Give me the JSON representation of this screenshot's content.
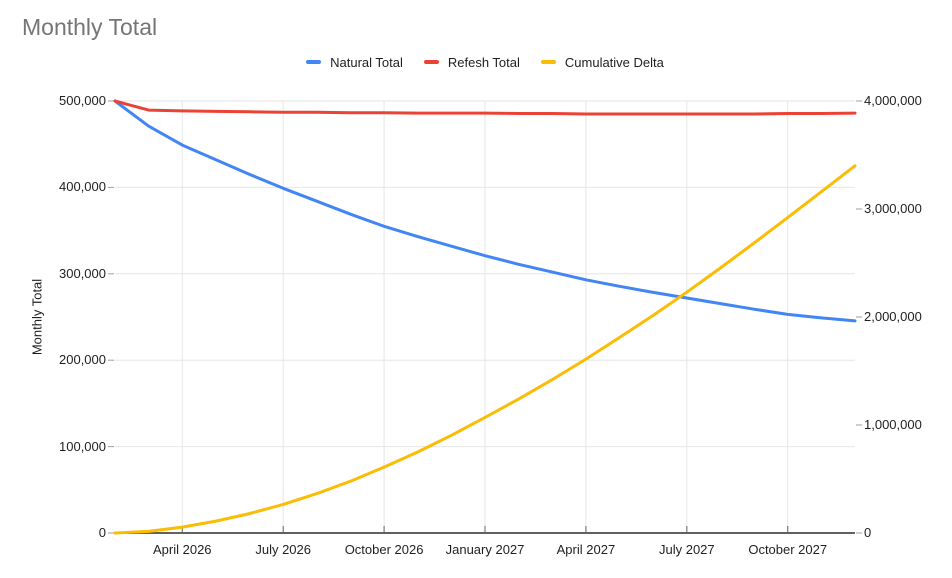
{
  "title": "Monthly Total",
  "legend": {
    "items": [
      {
        "label": "Natural Total",
        "color": "#4285F4"
      },
      {
        "label": "Refesh Total",
        "color": "#EA4335"
      },
      {
        "label": "Cumulative Delta",
        "color": "#FBBC04"
      }
    ]
  },
  "chart_data": {
    "type": "line",
    "title": "Monthly Total",
    "x": [
      "February 2026",
      "March 2026",
      "April 2026",
      "May 2026",
      "June 2026",
      "July 2026",
      "August 2026",
      "September 2026",
      "October 2026",
      "November 2026",
      "December 2026",
      "January 2027",
      "February 2027",
      "March 2027",
      "April 2027",
      "May 2027",
      "June 2027",
      "July 2027",
      "August 2027",
      "September 2027",
      "October 2027",
      "November 2027",
      "December 2027"
    ],
    "x_tick_labels": [
      "April 2026",
      "July 2026",
      "October 2026",
      "January 2027",
      "April 2027",
      "July 2027",
      "October 2027"
    ],
    "x_tick_indices": [
      2,
      5,
      8,
      11,
      14,
      17,
      20
    ],
    "left_axis": {
      "title": "Monthly Total",
      "min": 0,
      "max": 500000,
      "tick_values": [
        0,
        100000,
        200000,
        300000,
        400000,
        500000
      ],
      "tick_labels": [
        "0",
        "100,000",
        "200,000",
        "300,000",
        "400,000",
        "500,000"
      ]
    },
    "right_axis": {
      "min": 0,
      "max": 4000000,
      "tick_values": [
        0,
        1000000,
        2000000,
        3000000,
        4000000
      ],
      "tick_labels": [
        "0",
        "1,000,000",
        "2,000,000",
        "3,000,000",
        "4,000,000"
      ]
    },
    "grid": true,
    "legend_position": "top",
    "series": [
      {
        "name": "Natural Total",
        "axis": "left",
        "color": "#4285F4",
        "values": [
          500000,
          471000,
          449000,
          432000,
          415000,
          399000,
          384000,
          369000,
          355000,
          343000,
          332000,
          321000,
          311000,
          302000,
          293000,
          285500,
          278500,
          272000,
          265500,
          259000,
          253000,
          249000,
          245500
        ]
      },
      {
        "name": "Refesh Total",
        "axis": "left",
        "color": "#EA4335",
        "values": [
          500000,
          489500,
          488500,
          488000,
          487500,
          487000,
          487000,
          486500,
          486500,
          486000,
          486000,
          486000,
          485500,
          485500,
          485000,
          485000,
          485000,
          485000,
          485000,
          485000,
          485500,
          485500,
          486000
        ]
      },
      {
        "name": "Cumulative Delta",
        "axis": "right",
        "color": "#FBBC04",
        "values": [
          0,
          15000,
          55000,
          110000,
          180000,
          265000,
          365000,
          480000,
          610000,
          750000,
          905000,
          1070000,
          1240000,
          1420000,
          1610000,
          1810000,
          2015000,
          2230000,
          2455000,
          2685000,
          2920000,
          3160000,
          3400000
        ]
      }
    ]
  },
  "colors": {
    "title": "#757575",
    "axis_text": "#1f1f1f",
    "gridline": "#e6e6e6",
    "axis_line": "#616161",
    "tick": "#9e9e9e",
    "background": "#ffffff"
  }
}
